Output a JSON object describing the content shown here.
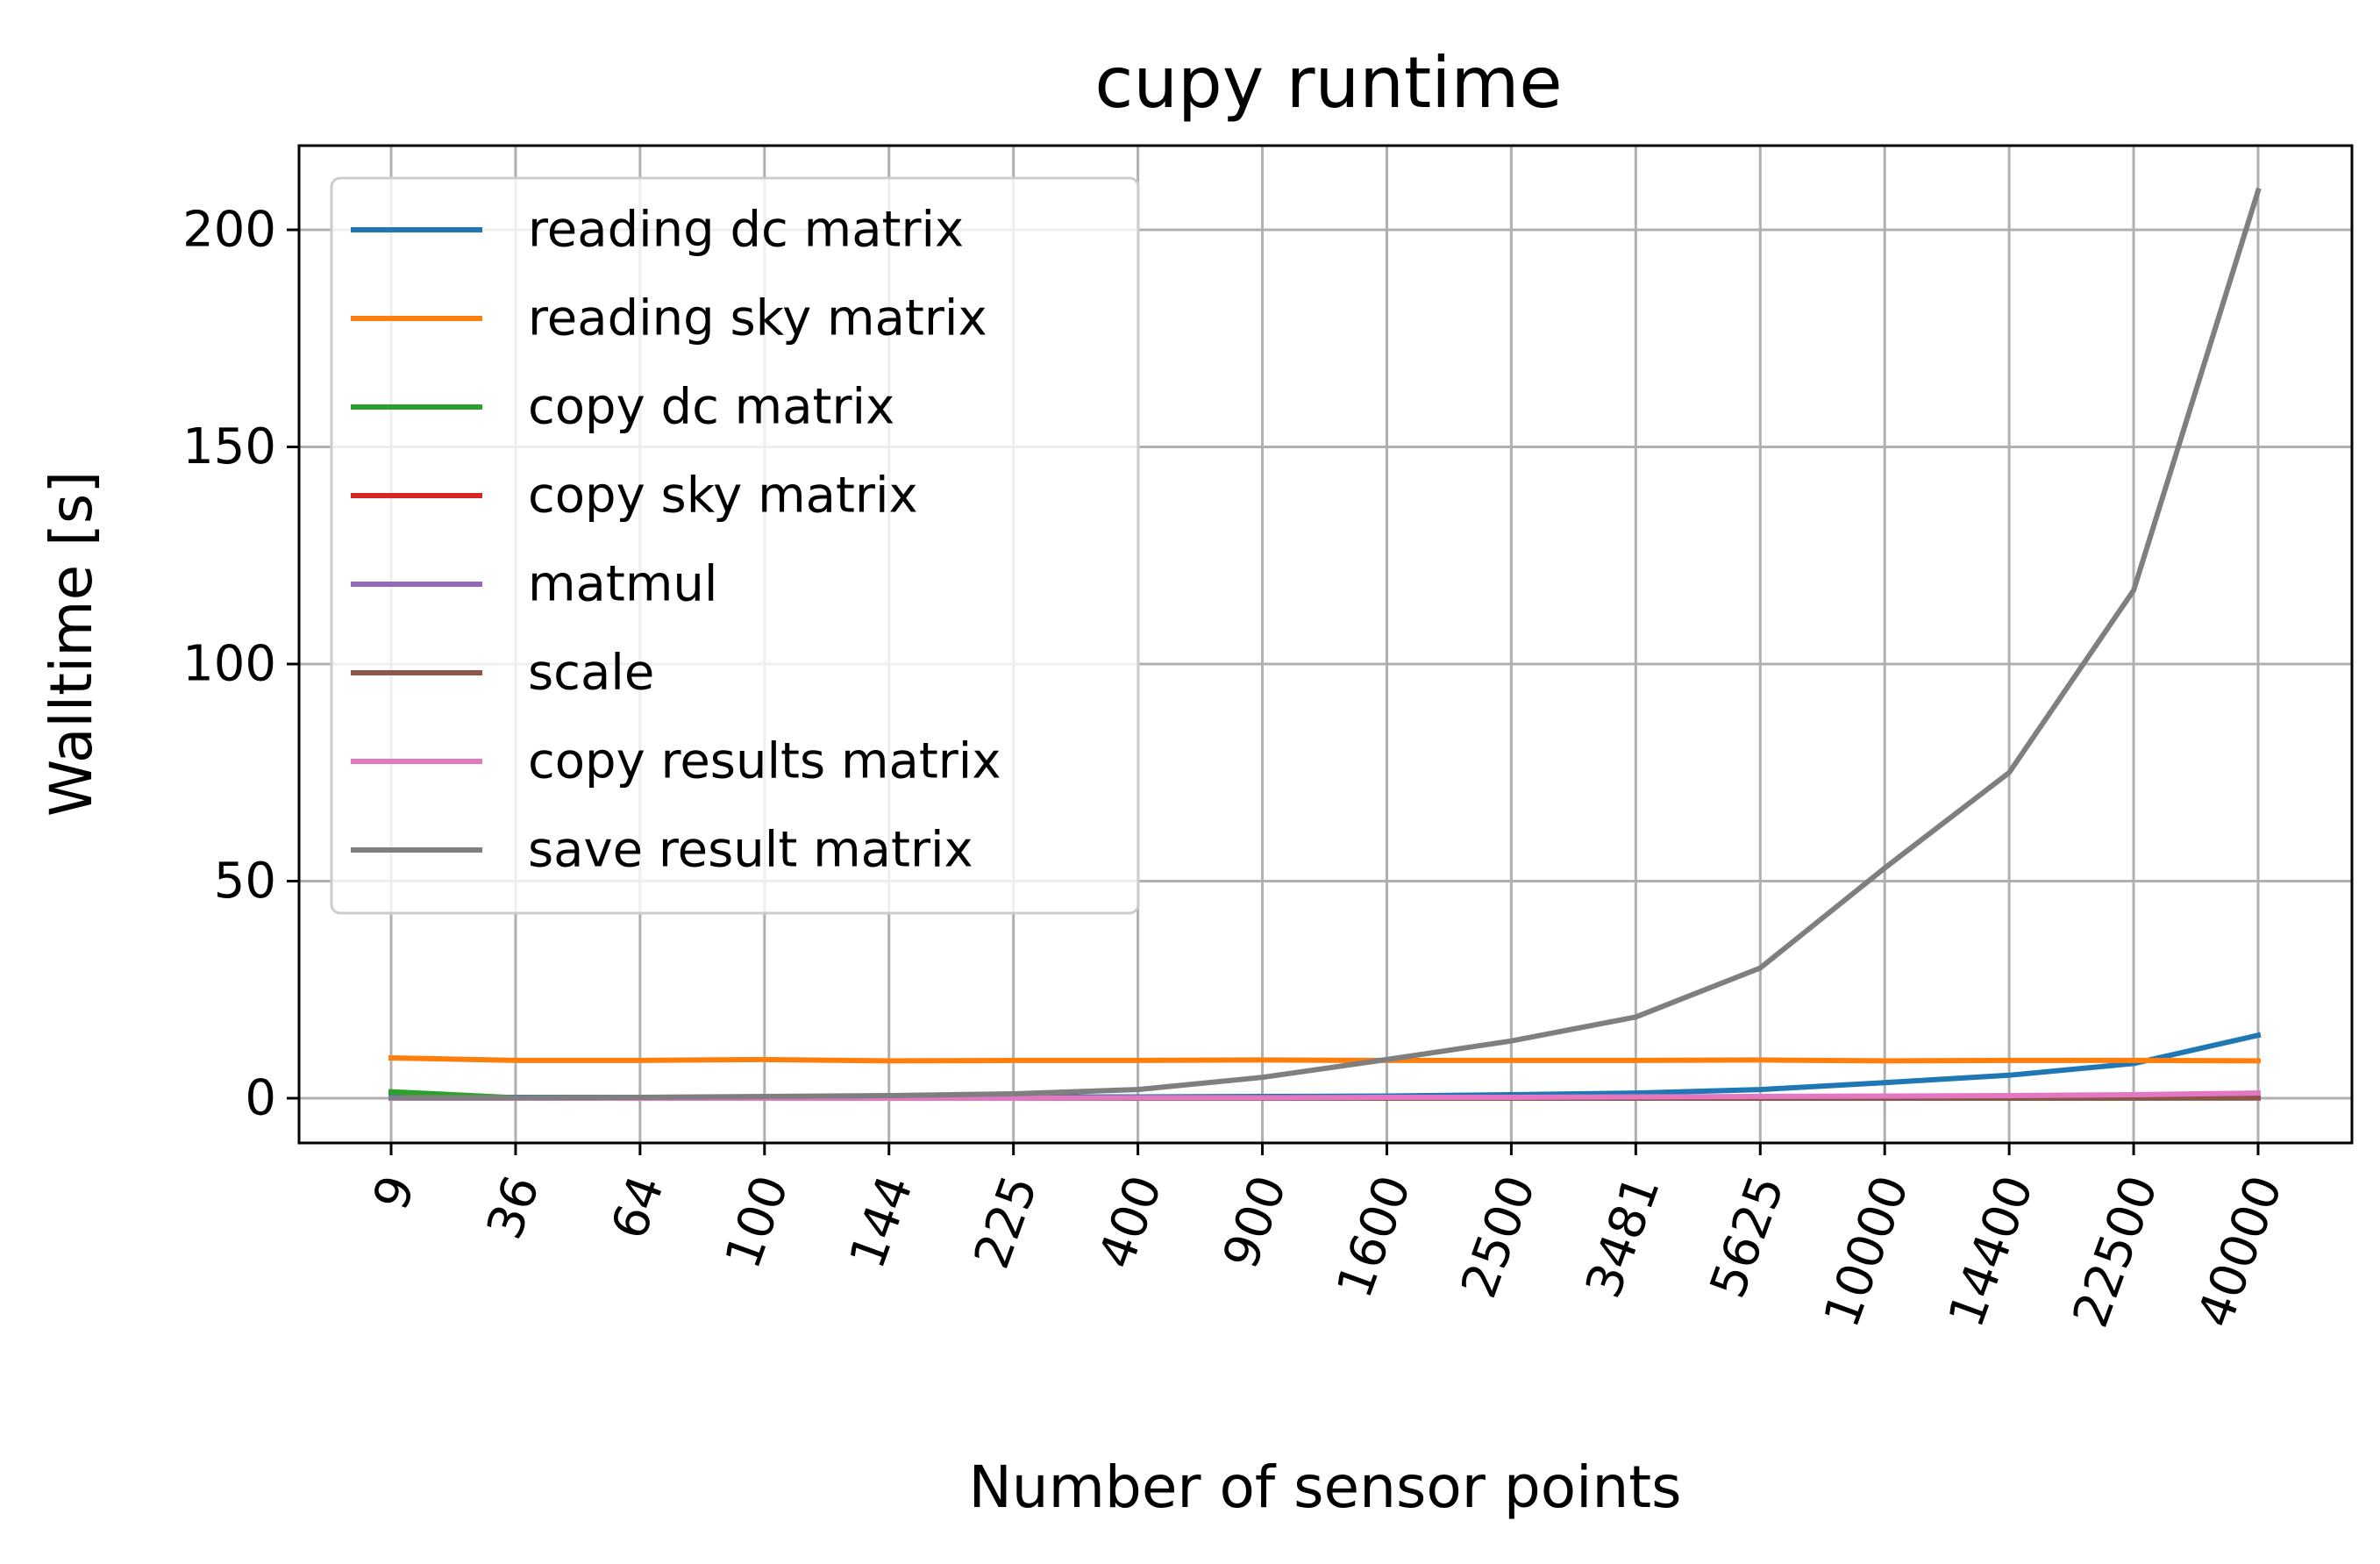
{
  "chart_data": {
    "type": "line",
    "title": "cupy runtime",
    "xlabel": "Number of sensor points",
    "ylabel": "Walltime [s]",
    "categories": [
      "9",
      "36",
      "64",
      "100",
      "144",
      "225",
      "400",
      "900",
      "1600",
      "2500",
      "3481",
      "5625",
      "10000",
      "14400",
      "22500",
      "40000"
    ],
    "ylim": [
      -10,
      220
    ],
    "yticks": [
      0,
      50,
      100,
      150,
      200
    ],
    "grid": true,
    "legend_position": "upper-left",
    "series": [
      {
        "name": "reading dc matrix",
        "color": "#1f77b4",
        "values": [
          0.3,
          0.2,
          0.2,
          0.2,
          0.2,
          0.3,
          0.3,
          0.4,
          0.5,
          0.8,
          1.2,
          2.0,
          3.6,
          5.3,
          8.0,
          14.5
        ]
      },
      {
        "name": "reading sky matrix",
        "color": "#ff7f0e",
        "values": [
          9.3,
          8.7,
          8.7,
          8.9,
          8.6,
          8.7,
          8.7,
          8.8,
          8.7,
          8.7,
          8.7,
          8.8,
          8.6,
          8.7,
          8.7,
          8.6
        ]
      },
      {
        "name": "copy dc matrix",
        "color": "#2ca02c",
        "values": [
          1.5,
          0.1,
          0.1,
          0.1,
          0.1,
          0.1,
          0.1,
          0.1,
          0.1,
          0.1,
          0.1,
          0.1,
          0.1,
          0.1,
          0.1,
          0.1
        ]
      },
      {
        "name": "copy sky matrix",
        "color": "#d62728",
        "values": [
          0.05,
          0.05,
          0.05,
          0.05,
          0.05,
          0.05,
          0.05,
          0.05,
          0.05,
          0.05,
          0.05,
          0.05,
          0.05,
          0.05,
          0.05,
          0.05
        ]
      },
      {
        "name": "matmul",
        "color": "#9467bd",
        "values": [
          0.05,
          0.05,
          0.05,
          0.05,
          0.05,
          0.05,
          0.05,
          0.05,
          0.05,
          0.05,
          0.05,
          0.05,
          0.05,
          0.05,
          0.05,
          0.1
        ]
      },
      {
        "name": "scale",
        "color": "#8c564b",
        "values": [
          0.0,
          0.0,
          0.0,
          0.0,
          0.0,
          0.0,
          0.0,
          0.0,
          0.0,
          0.0,
          0.0,
          0.0,
          0.0,
          0.0,
          0.05,
          0.1
        ]
      },
      {
        "name": "copy results matrix",
        "color": "#e377c2",
        "values": [
          0.0,
          0.0,
          0.0,
          0.0,
          0.0,
          0.0,
          0.1,
          0.1,
          0.2,
          0.2,
          0.3,
          0.4,
          0.5,
          0.6,
          0.8,
          1.2
        ]
      },
      {
        "name": "save result matrix",
        "color": "#7f7f7f",
        "values": [
          0.1,
          0.1,
          0.2,
          0.4,
          0.6,
          1.0,
          2.0,
          4.8,
          8.9,
          13.2,
          18.7,
          30.0,
          53.0,
          75.0,
          117.0,
          209.0
        ]
      }
    ]
  }
}
